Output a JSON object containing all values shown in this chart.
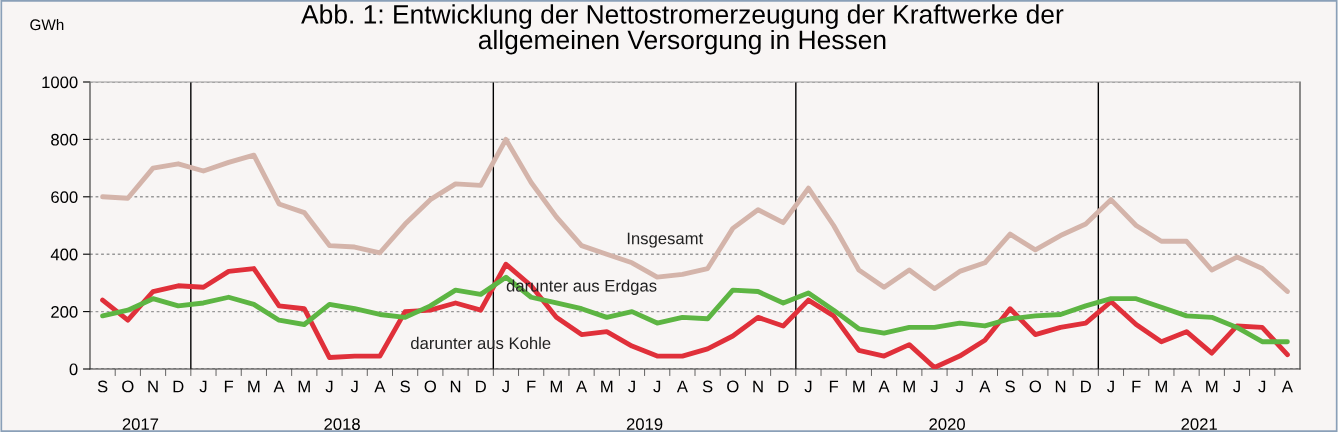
{
  "chart_data": {
    "type": "line",
    "title": "Abb. 1: Entwicklung der Nettostromerzeugung der Kraftwerke der\nallgemeinen Versorgung in Hessen",
    "ylabel": "GWh",
    "categories": [
      "S",
      "O",
      "N",
      "D",
      "J",
      "F",
      "M",
      "A",
      "M",
      "J",
      "J",
      "A",
      "S",
      "O",
      "N",
      "D",
      "J",
      "F",
      "M",
      "A",
      "M",
      "J",
      "J",
      "A",
      "S",
      "O",
      "N",
      "D",
      "J",
      "F",
      "M",
      "A",
      "M",
      "J",
      "J",
      "A",
      "S",
      "O",
      "N",
      "D",
      "J",
      "F",
      "M",
      "A",
      "M",
      "J",
      "J",
      "A"
    ],
    "series": [
      {
        "name": "Insgesamt",
        "color": "#d4b4aa",
        "values": [
          600,
          595,
          700,
          715,
          690,
          720,
          745,
          575,
          545,
          430,
          425,
          405,
          505,
          590,
          645,
          640,
          800,
          650,
          530,
          430,
          400,
          370,
          320,
          330,
          350,
          490,
          555,
          510,
          630,
          500,
          345,
          285,
          345,
          280,
          340,
          370,
          470,
          415,
          465,
          505,
          590,
          500,
          445,
          445,
          345,
          390,
          350,
          270
        ]
      },
      {
        "name": "darunter aus Erdgas",
        "color": "#5db543",
        "values": [
          185,
          205,
          245,
          220,
          230,
          250,
          225,
          170,
          155,
          225,
          210,
          190,
          180,
          220,
          275,
          260,
          320,
          250,
          230,
          210,
          180,
          200,
          160,
          180,
          175,
          275,
          270,
          230,
          265,
          205,
          140,
          125,
          145,
          145,
          160,
          150,
          175,
          185,
          190,
          220,
          245,
          245,
          215,
          185,
          180,
          145,
          95,
          95
        ]
      },
      {
        "name": "darunter aus Kohle",
        "color": "#e0303a",
        "values": [
          240,
          170,
          270,
          290,
          285,
          340,
          350,
          220,
          210,
          40,
          45,
          45,
          200,
          205,
          230,
          205,
          365,
          290,
          180,
          120,
          130,
          80,
          45,
          45,
          70,
          115,
          180,
          150,
          240,
          185,
          65,
          45,
          85,
          5,
          45,
          100,
          210,
          120,
          145,
          160,
          235,
          155,
          95,
          130,
          55,
          150,
          145,
          50
        ]
      }
    ],
    "ylim": [
      0,
      1000
    ],
    "yticks": [
      0,
      200,
      400,
      600,
      800,
      1000
    ],
    "grid": "y",
    "legend": false,
    "line_style": "solid",
    "marker": "none",
    "annotations": [
      "2017",
      "2018",
      "2019",
      "2020",
      "2021"
    ]
  }
}
